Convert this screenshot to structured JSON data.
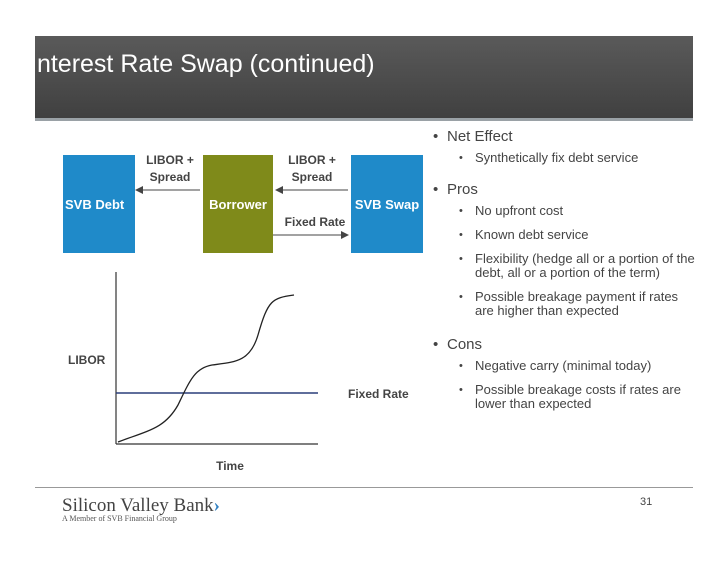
{
  "slide": {
    "title": "Interest Rate Swap (continued)",
    "page_number": "31"
  },
  "diagram": {
    "svb_debt": "SVB Debt",
    "borrower": "Borrower",
    "svb_swap": "SVB Swap",
    "libor_spread_left_line1": "LIBOR +",
    "libor_spread_left_line2": "Spread",
    "libor_spread_right_line1": "LIBOR +",
    "libor_spread_right_line2": "Spread",
    "fixed_rate": "Fixed Rate"
  },
  "graph": {
    "ylabel": "LIBOR",
    "xlabel": "Time",
    "fixed_rate_label": "Fixed Rate"
  },
  "bullets": {
    "net_effect": "Net Effect",
    "net_effect_sub1": "Synthetically fix debt service",
    "pros": "Pros",
    "pros_sub1": "No upfront cost",
    "pros_sub2": "Known debt service",
    "pros_sub3": "Flexibility (hedge all or a portion of the debt, all or a portion of the term)",
    "pros_sub4": "Possible breakage payment if rates are higher than expected",
    "cons": "Cons",
    "cons_sub1": "Negative carry (minimal today)",
    "cons_sub2": "Possible breakage costs if rates are lower than expected"
  },
  "footer": {
    "logo_text": "Silicon Valley Bank",
    "logo_chevron": "›",
    "logo_sub": "A Member of SVB Financial Group"
  },
  "colors": {
    "svb_blue": "#1f8ac9",
    "borrower_olive": "#7f8a1a",
    "title_gray": "#4a4a4a",
    "fixed_line": "#2a3f7a"
  }
}
